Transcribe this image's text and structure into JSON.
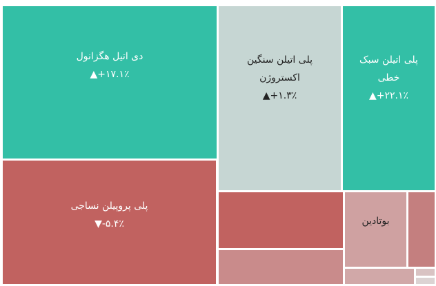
{
  "tiles": [
    {
      "name": "دی اتیل هگزانول",
      "change": "▲+۱۷.۱٪"
    },
    {
      "name": "پلی اتیلن سنگین اکستروژن",
      "change": "▲+۱.۳٪"
    },
    {
      "name": "پلی اتیلن سبک خطی",
      "change": "▲+۲۲.۱٪"
    },
    {
      "name": "پلی پروپیلن نساجی",
      "change": "▼-۵.۴٪"
    },
    {
      "name": "بوتادین"
    }
  ]
}
